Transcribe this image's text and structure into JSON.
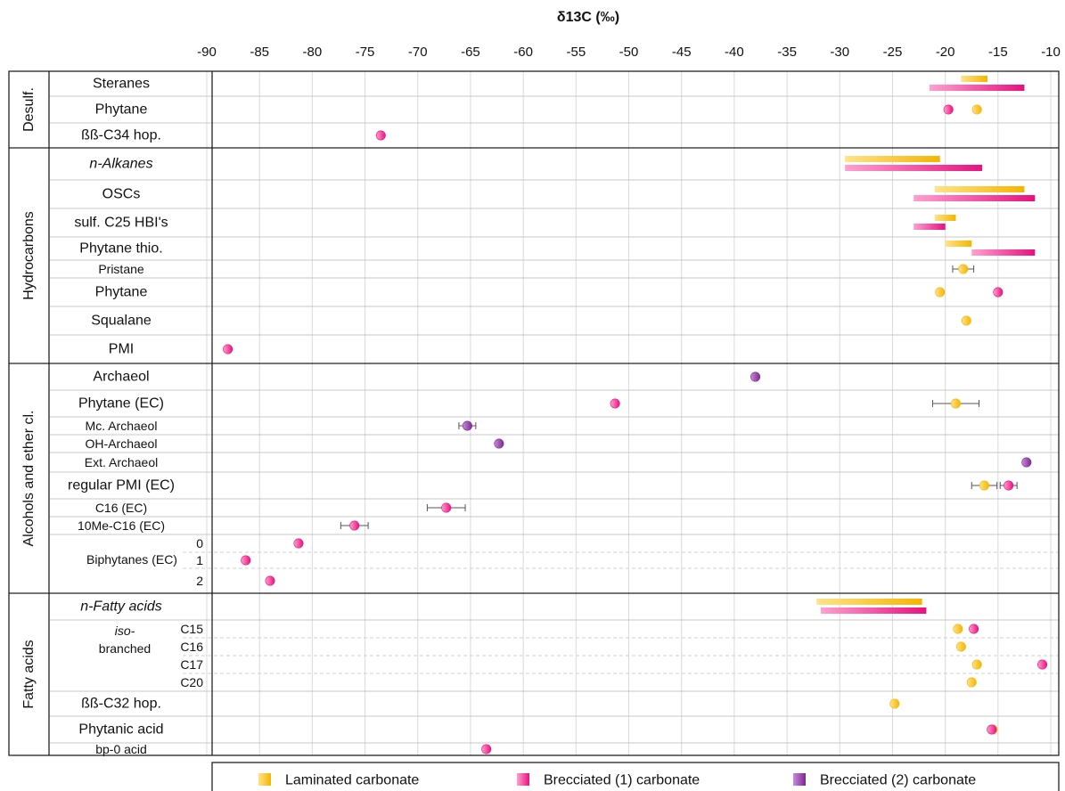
{
  "chart_data": {
    "type": "range-dot",
    "title": "δ13C (‰)",
    "xlabel": "δ13C (‰)",
    "xlim": [
      -90,
      -10
    ],
    "xticks": [
      "-90",
      "-85",
      "-80",
      "-75",
      "-70",
      "-65",
      "-60",
      "-55",
      "-50",
      "-45",
      "-40",
      "-35",
      "-30",
      "-25",
      "-20",
      "-15",
      "-10"
    ],
    "grid": true,
    "legend_position": "bottom",
    "colors": {
      "laminated_a": "#ffe38a",
      "laminated_b": "#f6b400",
      "brecciated1_a": "#ffa0d0",
      "brecciated1_b": "#e8117f",
      "brecciated2_a": "#c98be0",
      "brecciated2_b": "#7b2a8c"
    },
    "legend": [
      {
        "key": "lam",
        "label": "Laminated carbonate"
      },
      {
        "key": "br1",
        "label": "Brecciated (1) carbonate"
      },
      {
        "key": "br2",
        "label": "Brecciated (2) carbonate"
      }
    ],
    "groups": [
      {
        "label": "Desulf.",
        "rows": [
          {
            "label": "Steranes",
            "sub": "",
            "data": [
              {
                "series": "lam",
                "range": [
                  -18.5,
                  -16
                ]
              },
              {
                "series": "br1",
                "range": [
                  -21.5,
                  -12.5
                ]
              }
            ]
          },
          {
            "label": "Phytane",
            "sub": "",
            "data": [
              {
                "series": "lam",
                "value": -17
              },
              {
                "series": "br1",
                "value": -19.7
              }
            ]
          },
          {
            "label": "ßß-C34 hop.",
            "sub": "",
            "data": [
              {
                "series": "br1",
                "value": -73.5
              }
            ]
          }
        ]
      },
      {
        "label": "Hydrocarbons",
        "rows": [
          {
            "label": "n-Alkanes",
            "sub": "",
            "data": [
              {
                "series": "lam",
                "range": [
                  -29.5,
                  -20.5
                ]
              },
              {
                "series": "br1",
                "range": [
                  -29.5,
                  -16.5
                ]
              }
            ]
          },
          {
            "label": "OSCs",
            "sub": "",
            "data": [
              {
                "series": "lam",
                "range": [
                  -21,
                  -12.5
                ]
              },
              {
                "series": "br1",
                "range": [
                  -23,
                  -11.5
                ]
              }
            ]
          },
          {
            "label": "sulf. C25 HBI's",
            "sub": "",
            "data": [
              {
                "series": "lam",
                "range": [
                  -21,
                  -19
                ]
              },
              {
                "series": "br1",
                "range": [
                  -23,
                  -20
                ]
              }
            ]
          },
          {
            "label": "Phytane thio.",
            "sub": "",
            "data": [
              {
                "series": "lam",
                "range": [
                  -20,
                  -17.5
                ]
              },
              {
                "series": "br1",
                "range": [
                  -17.5,
                  -11.5
                ]
              }
            ]
          },
          {
            "label": "Pristane",
            "sub": "",
            "data": [
              {
                "series": "lam",
                "value": -18.3,
                "err": 1
              }
            ]
          },
          {
            "label": "Phytane",
            "sub": "",
            "data": [
              {
                "series": "lam",
                "value": -20.5
              },
              {
                "series": "br1",
                "value": -15
              }
            ]
          },
          {
            "label": "Squalane",
            "sub": "",
            "data": [
              {
                "series": "lam",
                "value": -18
              }
            ]
          },
          {
            "label": "PMI",
            "sub": "",
            "data": [
              {
                "series": "br1",
                "value": -88
              }
            ]
          }
        ]
      },
      {
        "label": "Alcohols and ether cl.",
        "rows": [
          {
            "label": "Archaeol",
            "sub": "",
            "data": [
              {
                "series": "br2",
                "value": -38
              }
            ]
          },
          {
            "label": "Phytane (EC)",
            "sub": "",
            "data": [
              {
                "series": "lam",
                "value": -19,
                "err": 2.2
              },
              {
                "series": "br1",
                "value": -51.3
              }
            ]
          },
          {
            "label": "Mc. Archaeol",
            "sub": "",
            "data": [
              {
                "series": "br2",
                "value": -65.3,
                "err": 0.8
              }
            ]
          },
          {
            "label": "OH-Archaeol",
            "sub": "",
            "data": [
              {
                "series": "br2",
                "value": -62.3
              }
            ]
          },
          {
            "label": "Ext. Archaeol",
            "sub": "",
            "data": [
              {
                "series": "br2",
                "value": -12.3
              }
            ]
          },
          {
            "label": "regular PMI (EC)",
            "sub": "",
            "data": [
              {
                "series": "lam",
                "value": -16.3,
                "err": 1.2
              },
              {
                "series": "br1",
                "value": -14,
                "err": 0.8
              }
            ]
          },
          {
            "label": "C16 (EC)",
            "sub": "",
            "data": [
              {
                "series": "br1",
                "value": -67.3,
                "err": 1.8
              }
            ]
          },
          {
            "label": "10Me-C16 (EC)",
            "sub": "",
            "data": [
              {
                "series": "br1",
                "value": -76,
                "err": 1.3
              }
            ]
          },
          {
            "label": "Biphytanes (EC)",
            "sub": "0",
            "data": [
              {
                "series": "br1",
                "value": -81.3
              }
            ]
          },
          {
            "label": "",
            "sub": "1",
            "data": [
              {
                "series": "br1",
                "value": -86.3
              }
            ]
          },
          {
            "label": "",
            "sub": "2",
            "data": [
              {
                "series": "br1",
                "value": -84
              }
            ]
          }
        ]
      },
      {
        "label": "Fatty acids",
        "rows": [
          {
            "label": "n-Fatty acids",
            "sub": "",
            "data": [
              {
                "series": "lam",
                "range": [
                  -32.2,
                  -22.2
                ]
              },
              {
                "series": "br1",
                "range": [
                  -31.8,
                  -21.8
                ]
              }
            ]
          },
          {
            "label": "iso-",
            "sub": "C15",
            "data": [
              {
                "series": "lam",
                "value": -18.8
              },
              {
                "series": "br1",
                "value": -17.3
              }
            ]
          },
          {
            "label": "branched",
            "sub": "C16",
            "data": [
              {
                "series": "lam",
                "value": -18.5
              }
            ]
          },
          {
            "label": "",
            "sub": "C17",
            "data": [
              {
                "series": "lam",
                "value": -17
              },
              {
                "series": "br1",
                "value": -10.8
              }
            ]
          },
          {
            "label": "",
            "sub": "C20",
            "data": [
              {
                "series": "lam",
                "value": -17.5
              }
            ]
          },
          {
            "label": "ßß-C32 hop.",
            "sub": "",
            "data": [
              {
                "series": "lam",
                "value": -24.8
              }
            ]
          },
          {
            "label": "Phytanic acid",
            "sub": "",
            "data": [
              {
                "series": "lam",
                "value": -15.5
              },
              {
                "series": "br1",
                "value": -15.6
              }
            ]
          },
          {
            "label": "bp-0 acid",
            "sub": "",
            "data": [
              {
                "series": "br1",
                "value": -63.5
              }
            ]
          }
        ]
      }
    ]
  }
}
